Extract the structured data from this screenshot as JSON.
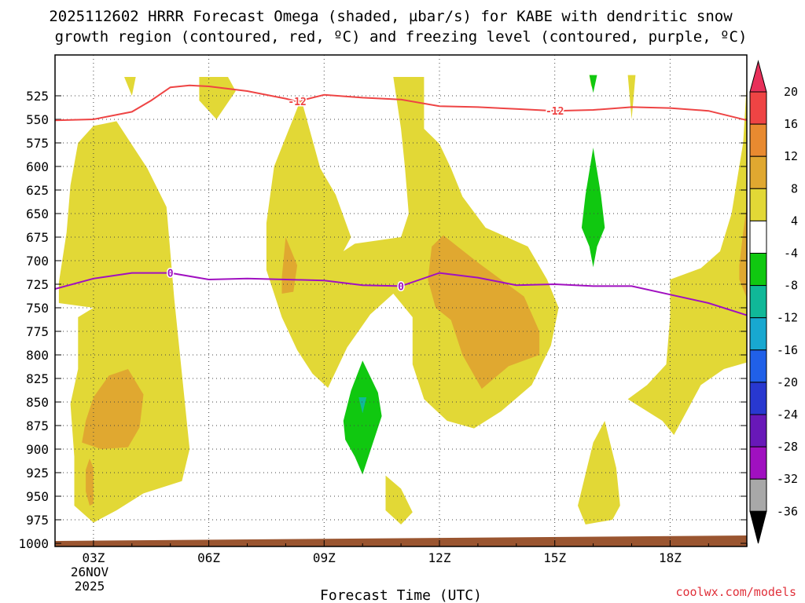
{
  "title_line1": "2025112602 HRRR Forecast Omega (shaded, µbar/s) for KABE with dendritic snow",
  "title_line2": "growth region (contoured, red, ºC) and freezing level (contoured, purple, ºC)",
  "xlabel": "Forecast Time (UTC)",
  "credit": "coolwx.com/models",
  "date_label": {
    "day": "26NOV",
    "year": "2025"
  },
  "chart_data": {
    "type": "time-height contour",
    "y_unit": "hPa",
    "y_range": [
      1000,
      505
    ],
    "x_range_hours": [
      2,
      20
    ],
    "y_ticks": [
      525,
      550,
      575,
      600,
      625,
      650,
      675,
      700,
      725,
      750,
      775,
      800,
      825,
      850,
      875,
      900,
      925,
      950,
      975,
      1000
    ],
    "x_ticks": [
      {
        "hour": 3,
        "label": "03Z"
      },
      {
        "hour": 6,
        "label": "06Z"
      },
      {
        "hour": 9,
        "label": "09Z"
      },
      {
        "hour": 12,
        "label": "12Z"
      },
      {
        "hour": 15,
        "label": "15Z"
      },
      {
        "hour": 18,
        "label": "18Z"
      }
    ],
    "colorbar": {
      "ticks": [
        "20",
        "16",
        "12",
        "8",
        "4",
        "-4",
        "-8",
        "-12",
        "-16",
        "-20",
        "-24",
        "-28",
        "-32",
        "-36"
      ],
      "colors": [
        "#e8305a",
        "#ee4444",
        "#e88a30",
        "#e0a830",
        "#e2d836",
        "#ffffff",
        "#10c810",
        "#10b898",
        "#18a8d0",
        "#2060e8",
        "#2838d0",
        "#6818b8",
        "#a010c0",
        "#a8a8a8",
        "#000000"
      ]
    },
    "dendritic_growth_contour": {
      "label": "-12",
      "color": "#ee4444",
      "points": [
        [
          2.0,
          551
        ],
        [
          3.0,
          550
        ],
        [
          4.0,
          542
        ],
        [
          4.5,
          530
        ],
        [
          5.0,
          516
        ],
        [
          5.5,
          514
        ],
        [
          6.0,
          515
        ],
        [
          7.0,
          520
        ],
        [
          8.0,
          528
        ],
        [
          8.3,
          531
        ],
        [
          9.0,
          524
        ],
        [
          10.0,
          527
        ],
        [
          11.0,
          529
        ],
        [
          12.0,
          536
        ],
        [
          13.0,
          537
        ],
        [
          14.0,
          539
        ],
        [
          15.0,
          541
        ],
        [
          16.0,
          540
        ],
        [
          17.0,
          537
        ],
        [
          18.0,
          538
        ],
        [
          19.0,
          541
        ],
        [
          20.0,
          551
        ]
      ],
      "label_positions": [
        8.3,
        15.0
      ]
    },
    "freezing_level_contour": {
      "label": "0",
      "color": "#a010c0",
      "points": [
        [
          2.0,
          730
        ],
        [
          3.0,
          719
        ],
        [
          4.0,
          713
        ],
        [
          5.0,
          713
        ],
        [
          6.0,
          720
        ],
        [
          7.0,
          719
        ],
        [
          8.0,
          720
        ],
        [
          9.0,
          721
        ],
        [
          10.0,
          726
        ],
        [
          11.0,
          727
        ],
        [
          12.0,
          713
        ],
        [
          13.0,
          718
        ],
        [
          14.0,
          726
        ],
        [
          15.0,
          725
        ],
        [
          16.0,
          727
        ],
        [
          17.0,
          727
        ],
        [
          18.0,
          736
        ],
        [
          19.0,
          745
        ],
        [
          20.0,
          758
        ]
      ],
      "label_positions": [
        5.0,
        11.0
      ]
    },
    "omega_regions": [
      {
        "level": "4 to 8",
        "color": "#e2d836",
        "points": [
          [
            2.1,
            723
          ],
          [
            2.3,
            670
          ],
          [
            2.4,
            620
          ],
          [
            2.6,
            575
          ],
          [
            3.0,
            557
          ],
          [
            3.6,
            552
          ],
          [
            4.4,
            602
          ],
          [
            4.9,
            643
          ],
          [
            5.1,
            740
          ],
          [
            5.3,
            820
          ],
          [
            5.5,
            900
          ],
          [
            5.3,
            934
          ],
          [
            4.3,
            947
          ],
          [
            3.6,
            965
          ],
          [
            3.0,
            978
          ],
          [
            2.5,
            960
          ],
          [
            2.5,
            908
          ],
          [
            2.4,
            852
          ],
          [
            2.6,
            815
          ],
          [
            2.6,
            760
          ],
          [
            3.0,
            750
          ],
          [
            2.1,
            745
          ]
        ]
      },
      {
        "level": "4 to 8",
        "color": "#e2d836",
        "points": [
          [
            3.9,
            726
          ],
          [
            4.5,
            726
          ],
          [
            4.6,
            770
          ],
          [
            4.2,
            812
          ],
          [
            3.9,
            780
          ]
        ]
      },
      {
        "level": "4 to 8",
        "color": "#e2d836",
        "points": [
          [
            5.75,
            505
          ],
          [
            6.5,
            505
          ],
          [
            6.7,
            520
          ],
          [
            6.2,
            550
          ],
          [
            5.75,
            530
          ]
        ]
      },
      {
        "level": "4 to 8",
        "color": "#e2d836",
        "points": [
          [
            3.8,
            505
          ],
          [
            4.1,
            505
          ],
          [
            4.0,
            525
          ],
          [
            3.9,
            515
          ]
        ]
      },
      {
        "level": "4 to 8",
        "color": "#e2d836",
        "points": [
          [
            8.4,
            528
          ],
          [
            8.9,
            602
          ],
          [
            9.3,
            630
          ],
          [
            9.7,
            675
          ],
          [
            9.5,
            690
          ],
          [
            9.8,
            682
          ],
          [
            11.0,
            675
          ],
          [
            11.2,
            650
          ],
          [
            11.1,
            600
          ],
          [
            11.0,
            560
          ],
          [
            10.8,
            505
          ],
          [
            11.6,
            505
          ],
          [
            11.6,
            560
          ],
          [
            12.0,
            576
          ],
          [
            12.3,
            602
          ],
          [
            12.6,
            632
          ],
          [
            13.2,
            665
          ],
          [
            14.3,
            685
          ],
          [
            14.8,
            720
          ],
          [
            15.1,
            750
          ],
          [
            14.9,
            790
          ],
          [
            14.4,
            832
          ],
          [
            13.6,
            860
          ],
          [
            12.9,
            878
          ],
          [
            12.2,
            870
          ],
          [
            11.6,
            847
          ],
          [
            11.3,
            810
          ],
          [
            11.3,
            760
          ],
          [
            10.8,
            735
          ],
          [
            10.2,
            757
          ],
          [
            9.6,
            792
          ],
          [
            9.1,
            835
          ],
          [
            8.7,
            820
          ],
          [
            8.3,
            795
          ],
          [
            7.9,
            760
          ],
          [
            7.5,
            710
          ],
          [
            7.5,
            660
          ],
          [
            7.7,
            600
          ]
        ]
      },
      {
        "level": "4 to 8",
        "color": "#e2d836",
        "points": [
          [
            10.6,
            928
          ],
          [
            11.0,
            942
          ],
          [
            11.3,
            967
          ],
          [
            11.0,
            980
          ],
          [
            10.6,
            965
          ]
        ]
      },
      {
        "level": "4 to 8",
        "color": "#e2d836",
        "points": [
          [
            15.9,
            503
          ],
          [
            16.0,
            503
          ],
          [
            15.95,
            516
          ]
        ]
      },
      {
        "level": "4 to 8",
        "color": "#e2d836",
        "points": [
          [
            16.9,
            503
          ],
          [
            17.1,
            503
          ],
          [
            17.0,
            550
          ]
        ]
      },
      {
        "level": "4 to 8",
        "color": "#e2d836",
        "points": [
          [
            15.6,
            960
          ],
          [
            16.0,
            893
          ],
          [
            16.3,
            870
          ],
          [
            16.6,
            920
          ],
          [
            16.7,
            960
          ],
          [
            16.5,
            975
          ],
          [
            15.8,
            980
          ]
        ]
      },
      {
        "level": "4 to 8",
        "color": "#e2d836",
        "points": [
          [
            18.0,
            720
          ],
          [
            18.8,
            708
          ],
          [
            19.3,
            690
          ],
          [
            19.6,
            650
          ],
          [
            19.9,
            575
          ],
          [
            20.0,
            508
          ],
          [
            20.0,
            808
          ],
          [
            19.4,
            815
          ],
          [
            18.8,
            832
          ],
          [
            18.1,
            885
          ],
          [
            17.8,
            870
          ],
          [
            16.9,
            847
          ],
          [
            17.4,
            832
          ],
          [
            17.9,
            810
          ],
          [
            18.0,
            760
          ]
        ]
      },
      {
        "level": "8 to 12",
        "color": "#e0a830",
        "points": [
          [
            2.7,
            893
          ],
          [
            2.8,
            870
          ],
          [
            3.0,
            845
          ],
          [
            3.4,
            822
          ],
          [
            3.9,
            815
          ],
          [
            4.3,
            842
          ],
          [
            4.2,
            877
          ],
          [
            3.9,
            898
          ],
          [
            3.2,
            900
          ]
        ]
      },
      {
        "level": "8 to 12",
        "color": "#e0a830",
        "points": [
          [
            2.8,
            922
          ],
          [
            2.9,
            910
          ],
          [
            3.0,
            920
          ],
          [
            3.0,
            958
          ],
          [
            2.9,
            960
          ],
          [
            2.8,
            945
          ]
        ]
      },
      {
        "level": "8 to 12",
        "color": "#e0a830",
        "points": [
          [
            7.9,
            718
          ],
          [
            8.0,
            675
          ],
          [
            8.3,
            705
          ],
          [
            8.2,
            733
          ],
          [
            7.9,
            735
          ]
        ]
      },
      {
        "level": "8 to 12",
        "color": "#e0a830",
        "points": [
          [
            11.7,
            720
          ],
          [
            11.8,
            685
          ],
          [
            12.1,
            673
          ],
          [
            13.0,
            702
          ],
          [
            14.2,
            738
          ],
          [
            14.6,
            775
          ],
          [
            14.6,
            800
          ],
          [
            13.8,
            812
          ],
          [
            13.1,
            836
          ],
          [
            12.6,
            800
          ],
          [
            12.3,
            763
          ],
          [
            11.9,
            750
          ]
        ]
      },
      {
        "level": "8 to 12",
        "color": "#e0a830",
        "points": [
          [
            19.8,
            705
          ],
          [
            19.9,
            670
          ],
          [
            20.0,
            640
          ],
          [
            20.0,
            740
          ],
          [
            19.8,
            720
          ]
        ]
      },
      {
        "level": "-4 to -8",
        "color": "#10c810",
        "points": [
          [
            9.5,
            870
          ],
          [
            9.7,
            838
          ],
          [
            10.0,
            806
          ],
          [
            10.4,
            840
          ],
          [
            10.5,
            865
          ],
          [
            10.2,
            902
          ],
          [
            10.0,
            927
          ],
          [
            9.8,
            908
          ],
          [
            9.55,
            890
          ]
        ]
      },
      {
        "level": "-4 to -8",
        "color": "#10c810",
        "points": [
          [
            15.7,
            665
          ],
          [
            15.8,
            630
          ],
          [
            16.0,
            580
          ],
          [
            16.2,
            630
          ],
          [
            16.3,
            665
          ],
          [
            16.1,
            685
          ],
          [
            16.0,
            707
          ],
          [
            15.9,
            685
          ]
        ]
      },
      {
        "level": "-4 to -8",
        "color": "#10c810",
        "points": [
          [
            15.9,
            503
          ],
          [
            16.1,
            503
          ],
          [
            16.0,
            522
          ]
        ]
      },
      {
        "level": "-8 to -12",
        "color": "#10b898",
        "points": [
          [
            9.9,
            845
          ],
          [
            10.1,
            845
          ],
          [
            10.0,
            862
          ]
        ]
      }
    ]
  }
}
